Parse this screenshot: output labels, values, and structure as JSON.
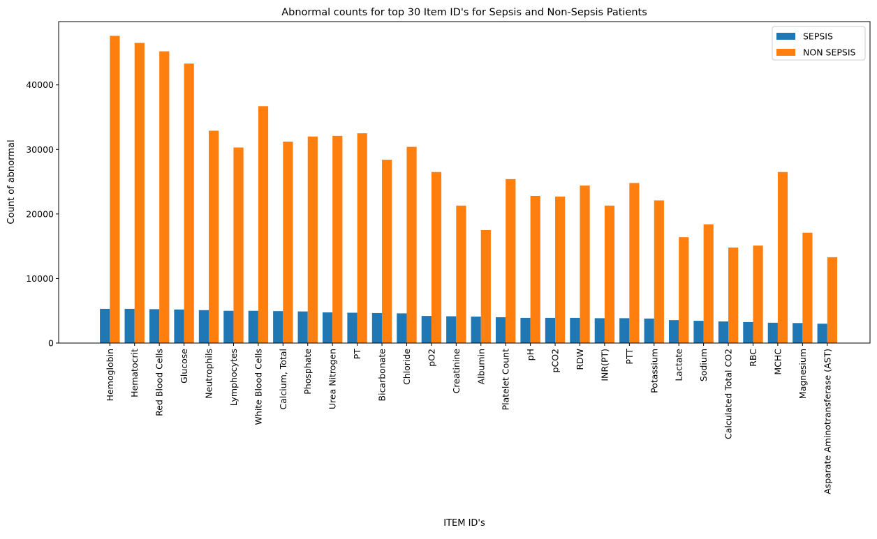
{
  "chart_data": {
    "type": "bar",
    "title": "Abnormal counts for top 30 Item ID's for Sepsis and Non-Sepsis Patients",
    "xlabel": "ITEM ID's",
    "ylabel": "Count of abnormal",
    "ylim": [
      0,
      49800
    ],
    "yticks": [
      0,
      10000,
      20000,
      30000,
      40000
    ],
    "grid": false,
    "legend_position": "top-right",
    "categories": [
      "Hemoglobin",
      "Hematocrit",
      "Red Blood Cells",
      "Glucose",
      "Neutrophils",
      "Lymphocytes",
      "White Blood Cells",
      "Calcium, Total",
      "Phosphate",
      "Urea Nitrogen",
      "PT",
      "Bicarbonate",
      "Chloride",
      "pO2",
      "Creatinine",
      "Albumin",
      "Platelet Count",
      "pH",
      "pCO2",
      "RDW",
      "INR(PT)",
      "PTT",
      "Potassium",
      "Lactate",
      "Sodium",
      "Calculated Total CO2",
      "RBC",
      "MCHC",
      "Magnesium",
      "Asparate Aminotransferase (AST)"
    ],
    "series": [
      {
        "name": "SEPSIS",
        "color": "#1f77b4",
        "values": [
          5300,
          5300,
          5250,
          5200,
          5100,
          5000,
          5000,
          4950,
          4900,
          4750,
          4700,
          4650,
          4600,
          4200,
          4150,
          4100,
          4000,
          3900,
          3900,
          3900,
          3850,
          3850,
          3800,
          3550,
          3450,
          3350,
          3250,
          3150,
          3100,
          3000
        ]
      },
      {
        "name": "NON SEPSIS",
        "color": "#ff7f0e",
        "values": [
          47600,
          46500,
          45200,
          43300,
          32900,
          30300,
          36700,
          31200,
          32000,
          32100,
          32500,
          28400,
          30400,
          26500,
          21300,
          17500,
          25400,
          22800,
          22700,
          24400,
          21300,
          24800,
          22100,
          16400,
          18400,
          14800,
          15100,
          26500,
          17100,
          13300
        ]
      }
    ]
  }
}
